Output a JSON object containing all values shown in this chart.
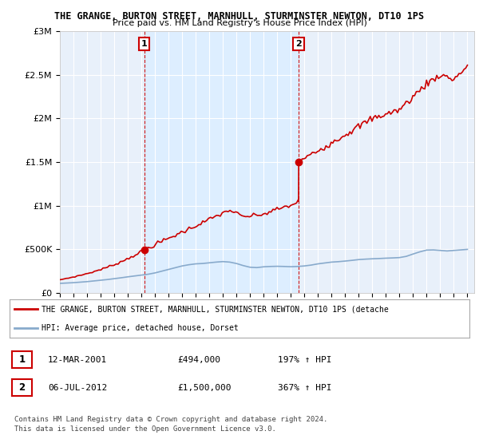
{
  "title": "THE GRANGE, BURTON STREET, MARNHULL, STURMINSTER NEWTON, DT10 1PS",
  "subtitle": "Price paid vs. HM Land Registry's House Price Index (HPI)",
  "sale1_date": "12-MAR-2001",
  "sale1_price": 494000,
  "sale1_hpi": "197% ↑ HPI",
  "sale2_date": "06-JUL-2012",
  "sale2_price": 1500000,
  "sale2_hpi": "367% ↑ HPI",
  "legend_property": "THE GRANGE, BURTON STREET, MARNHULL, STURMINSTER NEWTON, DT10 1PS (detache",
  "legend_hpi": "HPI: Average price, detached house, Dorset",
  "footnote1": "Contains HM Land Registry data © Crown copyright and database right 2024.",
  "footnote2": "This data is licensed under the Open Government Licence v3.0.",
  "property_color": "#cc0000",
  "hpi_color": "#88aacc",
  "shade_color": "#ddeeff",
  "sale_marker_color": "#cc0000",
  "dashed_line_color": "#cc0000",
  "ylim": [
    0,
    3000000
  ],
  "yticks": [
    0,
    500000,
    1000000,
    1500000,
    2000000,
    2500000,
    3000000
  ],
  "ytick_labels": [
    "£0",
    "£500K",
    "£1M",
    "£1.5M",
    "£2M",
    "£2.5M",
    "£3M"
  ],
  "bg_color": "#e8f0fa",
  "plot_bg": "#ffffff",
  "sale1_year": 2001.2,
  "sale2_year": 2012.58,
  "hpi_years": [
    1995,
    1995.5,
    1996,
    1996.5,
    1997,
    1997.5,
    1998,
    1998.5,
    1999,
    1999.5,
    2000,
    2000.5,
    2001,
    2001.5,
    2002,
    2002.5,
    2003,
    2003.5,
    2004,
    2004.5,
    2005,
    2005.5,
    2006,
    2006.5,
    2007,
    2007.5,
    2008,
    2008.5,
    2009,
    2009.5,
    2010,
    2010.5,
    2011,
    2011.5,
    2012,
    2012.5,
    2013,
    2013.5,
    2014,
    2014.5,
    2015,
    2015.5,
    2016,
    2016.5,
    2017,
    2017.5,
    2018,
    2018.5,
    2019,
    2019.5,
    2020,
    2020.5,
    2021,
    2021.5,
    2022,
    2022.5,
    2023,
    2023.5,
    2024,
    2024.5,
    2025
  ],
  "hpi_values": [
    108000,
    112000,
    116000,
    122000,
    128000,
    136000,
    144000,
    152000,
    162000,
    172000,
    183000,
    193000,
    203000,
    213000,
    228000,
    248000,
    268000,
    288000,
    308000,
    322000,
    332000,
    336000,
    344000,
    352000,
    358000,
    352000,
    336000,
    312000,
    293000,
    289000,
    298000,
    302000,
    304000,
    302000,
    299000,
    302000,
    308000,
    318000,
    332000,
    342000,
    352000,
    357000,
    364000,
    372000,
    381000,
    386000,
    390000,
    393000,
    397000,
    400000,
    404000,
    418000,
    445000,
    470000,
    490000,
    492000,
    486000,
    480000,
    486000,
    492000,
    498000
  ]
}
